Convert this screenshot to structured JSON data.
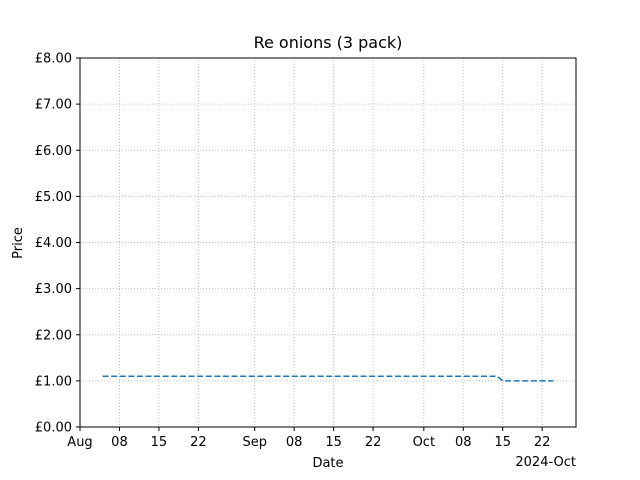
{
  "chart_data": {
    "type": "line",
    "title": "Re onions (3 pack)",
    "xlabel": "Date",
    "ylabel": "Price",
    "x_offset_label": "2024-Oct",
    "grid": true,
    "grid_style": "dotted",
    "line_style": "dashed",
    "colors": {
      "series": "#1f77b4",
      "grid": "#b0b0b0",
      "axes": "#000000"
    },
    "xlim": [
      "2024-08-01",
      "2024-10-28"
    ],
    "ylim": [
      0,
      8
    ],
    "x_ticks": [
      {
        "date": "2024-08-01",
        "label": "Aug"
      },
      {
        "date": "2024-08-08",
        "label": "08"
      },
      {
        "date": "2024-08-15",
        "label": "15"
      },
      {
        "date": "2024-08-22",
        "label": "22"
      },
      {
        "date": "2024-09-01",
        "label": "Sep"
      },
      {
        "date": "2024-09-08",
        "label": "08"
      },
      {
        "date": "2024-09-15",
        "label": "15"
      },
      {
        "date": "2024-09-22",
        "label": "22"
      },
      {
        "date": "2024-10-01",
        "label": "Oct"
      },
      {
        "date": "2024-10-08",
        "label": "08"
      },
      {
        "date": "2024-10-15",
        "label": "15"
      },
      {
        "date": "2024-10-22",
        "label": "22"
      }
    ],
    "y_ticks": [
      {
        "value": 0,
        "label": "£0.00"
      },
      {
        "value": 1,
        "label": "£1.00"
      },
      {
        "value": 2,
        "label": "£2.00"
      },
      {
        "value": 3,
        "label": "£3.00"
      },
      {
        "value": 4,
        "label": "£4.00"
      },
      {
        "value": 5,
        "label": "£5.00"
      },
      {
        "value": 6,
        "label": "£6.00"
      },
      {
        "value": 7,
        "label": "£7.00"
      },
      {
        "value": 8,
        "label": "£8.00"
      }
    ],
    "series": [
      {
        "points": [
          {
            "x": "2024-08-05",
            "y": 1.1
          },
          {
            "x": "2024-10-14",
            "y": 1.1
          },
          {
            "x": "2024-10-15",
            "y": 1.0
          },
          {
            "x": "2024-10-24",
            "y": 1.0
          }
        ]
      }
    ]
  }
}
